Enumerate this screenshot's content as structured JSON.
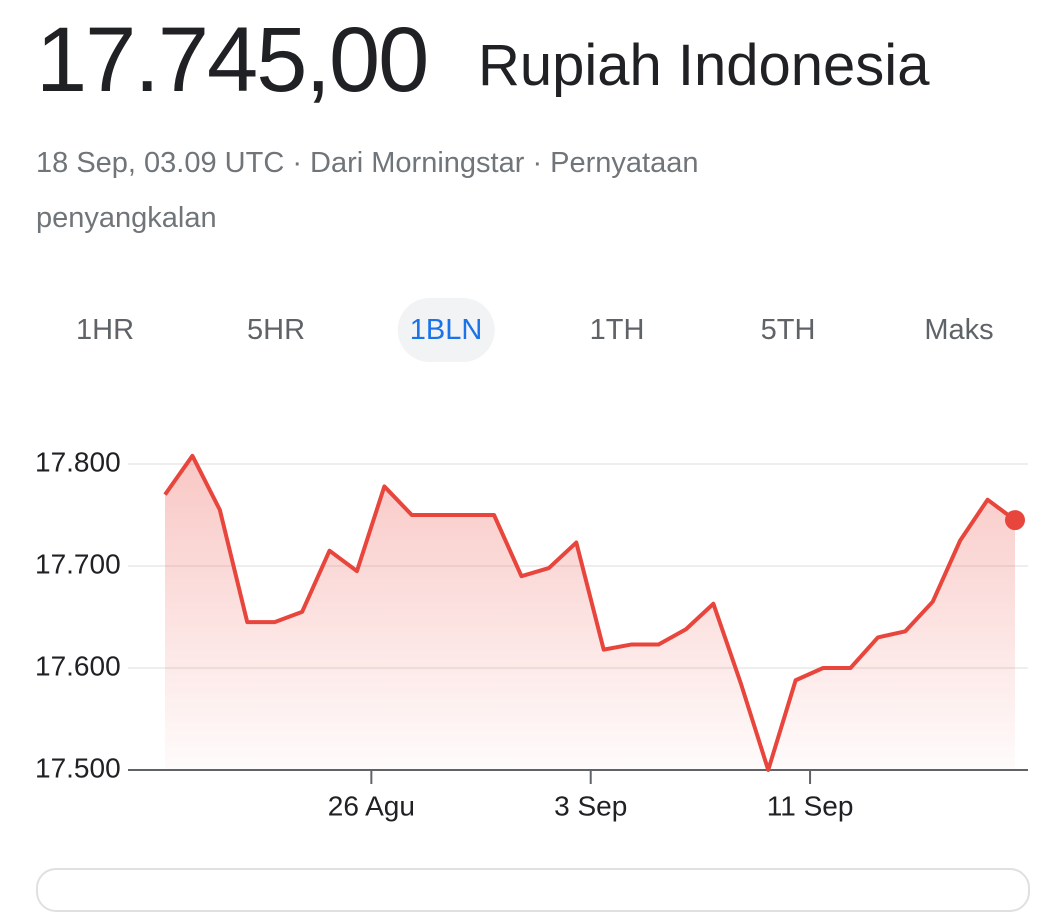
{
  "header": {
    "price": "17.745,00",
    "currency": "Rupiah Indonesia"
  },
  "meta": {
    "timestamp": "18 Sep, 03.09 UTC",
    "source": "Dari Morningstar",
    "disclaimer": "Pernyataan penyangkalan"
  },
  "tabs": {
    "items": [
      "1HR",
      "5HR",
      "1BLN",
      "1TH",
      "5TH",
      "Maks"
    ],
    "selected": "1BLN"
  },
  "chart_data": {
    "type": "line",
    "categories": [
      null,
      null,
      null,
      null,
      null,
      null,
      null,
      null,
      "26 Agu",
      null,
      null,
      null,
      null,
      null,
      null,
      null,
      "3 Sep",
      null,
      null,
      null,
      null,
      null,
      null,
      null,
      "11 Sep",
      null,
      null,
      null,
      null,
      null,
      null,
      null
    ],
    "series": [
      {
        "color": "#e8453c",
        "values": [
          17770,
          17808,
          17755,
          17645,
          17645,
          17655,
          17715,
          17695,
          17778,
          17750,
          17750,
          17750,
          17750,
          17690,
          17698,
          17723,
          17618,
          17623,
          17623,
          17638,
          17663,
          17585,
          17500,
          17588,
          17600,
          17600,
          17630,
          17636,
          17665,
          17725,
          17765,
          17745
        ]
      }
    ],
    "ylim": [
      17500,
      17800
    ],
    "yticks": [
      {
        "value": 17500,
        "label": "17.500"
      },
      {
        "value": 17600,
        "label": "17.600"
      },
      {
        "value": 17700,
        "label": "17.700"
      },
      {
        "value": 17800,
        "label": "17.800"
      }
    ],
    "grid": true
  }
}
